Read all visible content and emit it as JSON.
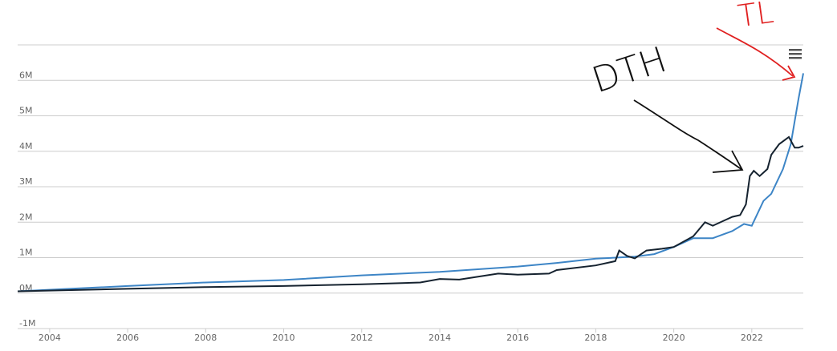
{
  "chart_data": {
    "type": "line",
    "annotations": [
      "DTH",
      "TL"
    ],
    "xlim": [
      2003.18,
      2023.32
    ],
    "xticks": [
      2004,
      2006,
      2008,
      2010,
      2012,
      2014,
      2016,
      2018,
      2020,
      2022
    ],
    "ylim": [
      -1000000,
      7000000
    ],
    "yticks": [
      {
        "value": -1000000,
        "label": "-1M"
      },
      {
        "value": 0,
        "label": "0M"
      },
      {
        "value": 1000000,
        "label": "1M"
      },
      {
        "value": 2000000,
        "label": "2M"
      },
      {
        "value": 3000000,
        "label": "3M"
      },
      {
        "value": 4000000,
        "label": "4M"
      },
      {
        "value": 5000000,
        "label": "5M"
      },
      {
        "value": 6000000,
        "label": "6M"
      }
    ],
    "grid": true,
    "series": [
      {
        "color": "#3d85c6",
        "x": [
          2003.18,
          2006,
          2008,
          2010,
          2012,
          2014,
          2016,
          2017,
          2018,
          2019,
          2019.5,
          2020,
          2020.5,
          2021,
          2021.5,
          2021.8,
          2022,
          2022.3,
          2022.5,
          2022.8,
          2023,
          2023.1,
          2023.2,
          2023.32
        ],
        "values": [
          50000,
          200000,
          300000,
          370000,
          500000,
          600000,
          750000,
          850000,
          970000,
          1030000,
          1100000,
          1300000,
          1550000,
          1550000,
          1750000,
          1950000,
          1900000,
          2600000,
          2800000,
          3500000,
          4200000,
          4850000,
          5500000,
          6200000
        ]
      },
      {
        "color": "#15222f",
        "x": [
          2003.18,
          2006,
          2008,
          2010,
          2012,
          2013.5,
          2014,
          2014.5,
          2015.5,
          2016,
          2016.8,
          2017,
          2018,
          2018.5,
          2018.6,
          2018.8,
          2019,
          2019.3,
          2019.7,
          2020,
          2020.5,
          2020.8,
          2021,
          2021.3,
          2021.5,
          2021.7,
          2021.85,
          2021.95,
          2022.05,
          2022.2,
          2022.4,
          2022.5,
          2022.7,
          2022.95,
          2023.1,
          2023.2,
          2023.32
        ],
        "values": [
          50000,
          120000,
          170000,
          200000,
          250000,
          300000,
          400000,
          380000,
          550000,
          520000,
          550000,
          650000,
          780000,
          900000,
          1200000,
          1050000,
          980000,
          1200000,
          1250000,
          1300000,
          1600000,
          2000000,
          1900000,
          2050000,
          2150000,
          2200000,
          2500000,
          3300000,
          3450000,
          3300000,
          3500000,
          3900000,
          4200000,
          4400000,
          4100000,
          4100000,
          4150000
        ]
      }
    ]
  }
}
